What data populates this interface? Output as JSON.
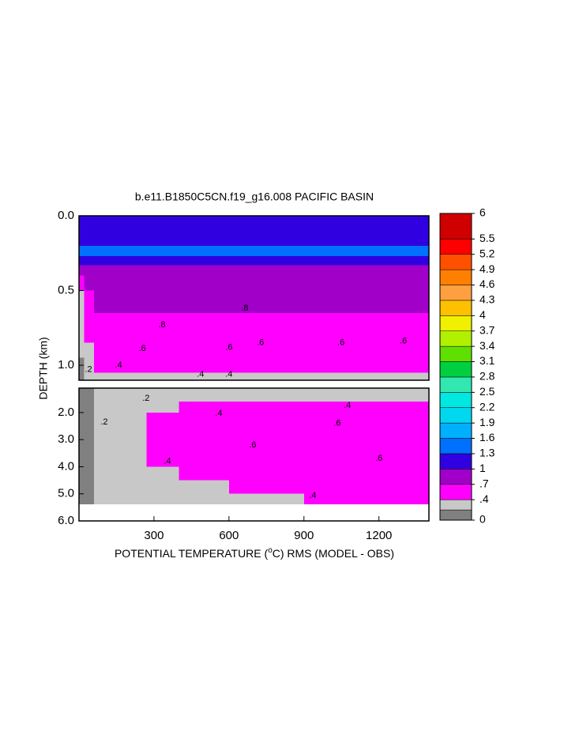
{
  "chart_data": {
    "type": "contour",
    "title": "b.e11.B1850C5CN.f19_g16.008 PACIFIC BASIN",
    "ylabel": "DEPTH (km)",
    "xlabel": {
      "before": "POTENTIAL TEMPERATURE (",
      "sup": "o",
      "after": "C) RMS (MODEL - OBS)"
    },
    "xlim": [
      0,
      1400
    ],
    "xticks": [
      300,
      600,
      900,
      1200
    ],
    "panels": [
      {
        "ylim": [
          0,
          1.1
        ],
        "yticks": [
          {
            "value": 0,
            "label": "0.0"
          },
          0.5,
          {
            "value": 1,
            "label": "1.0"
          }
        ],
        "x_edges": [
          0,
          20,
          60,
          150,
          300,
          600,
          900,
          1200,
          1400
        ],
        "depth_edges": [
          0,
          0.1,
          0.2,
          0.27,
          0.33,
          0.4,
          0.5,
          0.65,
          0.75,
          0.85,
          0.95,
          1.05,
          1.1
        ],
        "z": [
          [
            1.1,
            1.1,
            1.1,
            1.1,
            1.1,
            1.1,
            1.1,
            1.1
          ],
          [
            1.2,
            1.2,
            1.2,
            1.2,
            1.2,
            1.2,
            1.2,
            1.2
          ],
          [
            1.4,
            1.4,
            1.4,
            1.4,
            1.4,
            1.4,
            1.4,
            1.4
          ],
          [
            1.1,
            1.1,
            1.1,
            1.1,
            1.1,
            1.1,
            1.1,
            1.1
          ],
          [
            0.9,
            0.9,
            0.9,
            0.9,
            0.9,
            0.9,
            0.9,
            0.9
          ],
          [
            0.6,
            0.85,
            0.85,
            0.85,
            0.85,
            0.85,
            0.85,
            0.85
          ],
          [
            0.3,
            0.6,
            0.8,
            0.8,
            0.8,
            0.8,
            0.8,
            0.8
          ],
          [
            0.3,
            0.5,
            0.6,
            0.6,
            0.6,
            0.6,
            0.6,
            0.6
          ],
          [
            0.3,
            0.45,
            0.55,
            0.55,
            0.55,
            0.55,
            0.55,
            0.55
          ],
          [
            0.3,
            0.35,
            0.5,
            0.5,
            0.5,
            0.5,
            0.5,
            0.5
          ],
          [
            0.15,
            0.35,
            0.45,
            0.45,
            0.45,
            0.45,
            0.45,
            0.45
          ],
          [
            0.15,
            0.3,
            0.3,
            0.3,
            0.3,
            0.3,
            0.3,
            0.3
          ]
        ],
        "contour_labels": [
          {
            "value": 0.6,
            "label": ".6",
            "x": 253,
            "depth": 0.89
          },
          {
            "value": 0.6,
            "label": ".6",
            "x": 600,
            "depth": 0.88
          },
          {
            "value": 0.6,
            "label": ".6",
            "x": 726,
            "depth": 0.85
          },
          {
            "value": 0.6,
            "label": ".6",
            "x": 1048,
            "depth": 0.85
          },
          {
            "value": 0.6,
            "label": ".6",
            "x": 1298,
            "depth": 0.84
          },
          {
            "value": 0.4,
            "label": ".4",
            "x": 486,
            "depth": 1.06
          },
          {
            "value": 0.4,
            "label": ".4",
            "x": 600,
            "depth": 1.06
          },
          {
            "value": 0.8,
            "label": ".8",
            "x": 332,
            "depth": 0.73
          },
          {
            "value": 0.8,
            "label": ".8",
            "x": 663,
            "depth": 0.62
          },
          {
            "value": 0.4,
            "label": ".4",
            "x": 158,
            "depth": 1.0
          },
          {
            "value": 0.2,
            "label": ".2",
            "x": 38,
            "depth": 1.03
          }
        ]
      },
      {
        "ylim": [
          1.1,
          6
        ],
        "yticks": [
          {
            "value": 2,
            "label": "2.0"
          },
          {
            "value": 3,
            "label": "3.0"
          },
          {
            "value": 4,
            "label": "4.0"
          },
          {
            "value": 5,
            "label": "5.0"
          },
          {
            "value": 6,
            "label": "6.0"
          }
        ],
        "x_edges": [
          0,
          60,
          120,
          270,
          400,
          600,
          900,
          1200,
          1400
        ],
        "depth_edges": [
          1.1,
          1.3,
          1.6,
          2.0,
          2.5,
          3.0,
          3.5,
          4.0,
          4.5,
          5.0,
          5.37
        ],
        "z": [
          [
            0.15,
            0.3,
            0.3,
            0.3,
            0.3,
            0.3,
            0.3,
            0.3
          ],
          [
            0.15,
            0.25,
            0.3,
            0.3,
            0.35,
            0.35,
            0.38,
            0.38
          ],
          [
            0.15,
            0.25,
            0.3,
            0.35,
            0.42,
            0.45,
            0.45,
            0.45
          ],
          [
            0.1,
            0.2,
            0.3,
            0.45,
            0.5,
            0.55,
            0.55,
            0.55
          ],
          [
            0.1,
            0.2,
            0.3,
            0.45,
            0.55,
            0.6,
            0.63,
            0.63
          ],
          [
            0.1,
            0.2,
            0.3,
            0.45,
            0.55,
            0.6,
            0.63,
            0.63
          ],
          [
            0.1,
            0.2,
            0.3,
            0.42,
            0.5,
            0.55,
            0.58,
            0.6
          ],
          [
            0.1,
            0.2,
            0.3,
            0.35,
            0.45,
            0.5,
            0.5,
            0.5
          ],
          [
            0.1,
            0.2,
            0.3,
            0.3,
            0.38,
            0.45,
            0.45,
            0.45
          ],
          [
            0.1,
            0.25,
            0.2,
            0.3,
            0.3,
            0.35,
            0.42,
            0.42
          ]
        ],
        "contour_labels": [
          {
            "value": 0.2,
            "label": ".2",
            "x": 268,
            "depth": 1.48
          },
          {
            "value": 0.4,
            "label": ".4",
            "x": 559,
            "depth": 2.03
          },
          {
            "value": 0.4,
            "label": ".4",
            "x": 1074,
            "depth": 1.74
          },
          {
            "value": 0.6,
            "label": ".6",
            "x": 1033,
            "depth": 2.4
          },
          {
            "value": 0.6,
            "label": ".6",
            "x": 695,
            "depth": 3.2
          },
          {
            "value": 0.6,
            "label": ".6",
            "x": 1200,
            "depth": 3.7
          },
          {
            "value": 0.4,
            "label": ".4",
            "x": 354,
            "depth": 3.8
          },
          {
            "value": 0.4,
            "label": ".4",
            "x": 935,
            "depth": 5.07
          },
          {
            "value": 0.2,
            "label": ".2",
            "x": 101,
            "depth": 2.35
          }
        ]
      }
    ],
    "colorbar": {
      "levels": [
        0,
        0.2,
        0.4,
        0.7,
        1.0,
        1.3,
        1.6,
        1.9,
        2.2,
        2.5,
        2.8,
        3.1,
        3.4,
        3.7,
        4.0,
        4.3,
        4.6,
        4.9,
        5.2,
        5.5,
        6
      ],
      "colors": [
        "#808080",
        "#c8c8c8",
        "#ff00ff",
        "#a000c8",
        "#3000e0",
        "#0070ff",
        "#00b0ff",
        "#00d8f0",
        "#00e8e0",
        "#30e8b0",
        "#00d040",
        "#60e000",
        "#b0f000",
        "#f0f000",
        "#ffc000",
        "#ffa040",
        "#ff8000",
        "#ff5000",
        "#ff0000",
        "#d00000"
      ],
      "ticks": [
        6,
        5.5,
        5.2,
        4.9,
        4.6,
        4.3,
        4,
        3.7,
        3.4,
        3.1,
        2.8,
        2.5,
        2.2,
        1.9,
        1.6,
        1.3,
        1,
        {
          "value": 0.7,
          "label": ".7"
        },
        {
          "value": 0.4,
          "label": ".4"
        },
        0
      ]
    }
  }
}
